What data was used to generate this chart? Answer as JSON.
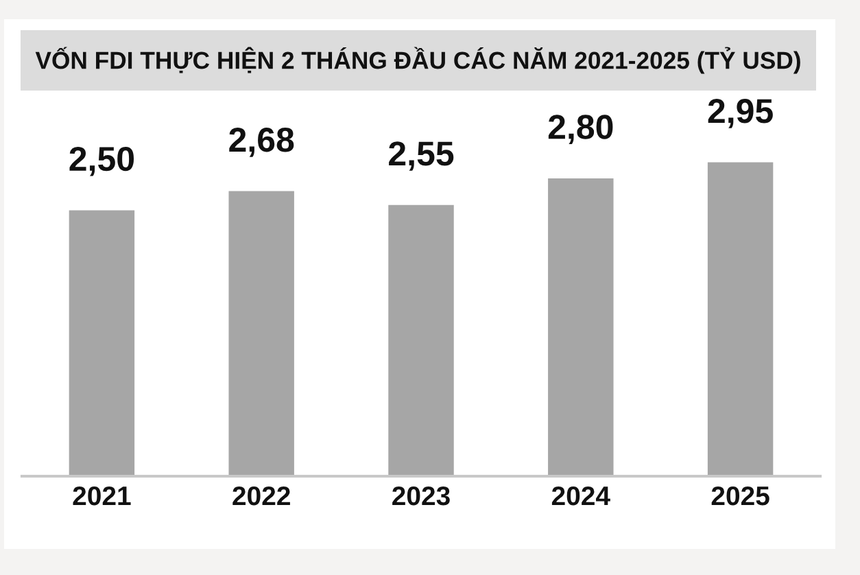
{
  "chart_data": {
    "type": "bar",
    "title": "VỐN FDI THỰC HIỆN 2 THÁNG ĐẦU CÁC NĂM 2021-2025 (TỶ USD)",
    "categories": [
      "2021",
      "2022",
      "2023",
      "2024",
      "2025"
    ],
    "values": [
      2.5,
      2.68,
      2.55,
      2.8,
      2.95
    ],
    "color": "#a6a6a6",
    "value_labels": [
      "2,50",
      "2,68",
      "2,55",
      "2,80",
      "2,95"
    ],
    "tick_labels": "x"
  }
}
